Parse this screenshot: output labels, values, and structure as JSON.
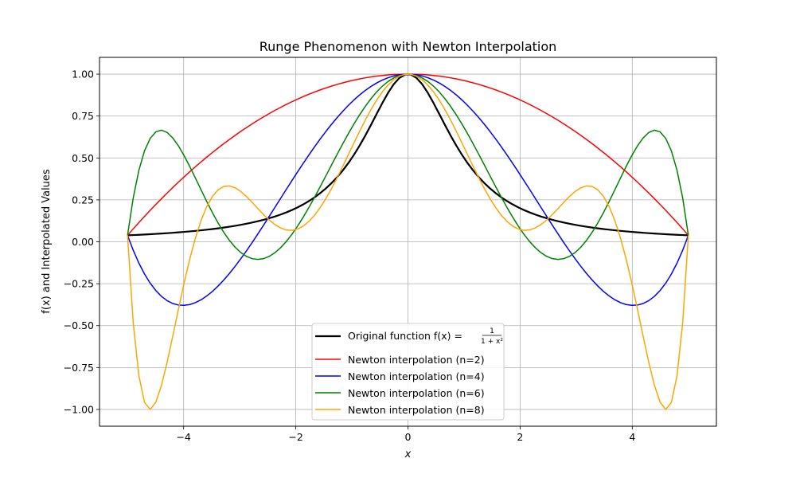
{
  "chart_data": {
    "type": "line",
    "title": "Runge Phenomenon with Newton Interpolation",
    "xlabel": "x",
    "ylabel": "f(x) and Interpolated Values",
    "xlim": [
      -5.5,
      5.5
    ],
    "ylim": [
      -1.1,
      1.1
    ],
    "xticks": [
      -4,
      -2,
      0,
      2,
      4
    ],
    "xtick_labels": [
      "−4",
      "−2",
      "0",
      "2",
      "4"
    ],
    "yticks": [
      -1.0,
      -0.75,
      -0.5,
      -0.25,
      0.0,
      0.25,
      0.5,
      0.75,
      1.0
    ],
    "ytick_labels": [
      "−1.00",
      "−0.75",
      "−0.50",
      "−0.25",
      "0.00",
      "0.25",
      "0.50",
      "0.75",
      "1.00"
    ],
    "grid": true,
    "legend_position": "lower-center",
    "x_domain": [
      -5,
      5
    ],
    "series": [
      {
        "name": "Original function f(x) = 1/(1+x²)",
        "color": "#000000",
        "linewidth": 2.2,
        "function": "1/(1+x^2)",
        "sample_points": [
          {
            "x": -5,
            "y": 0.038
          },
          {
            "x": -4,
            "y": 0.059
          },
          {
            "x": -3,
            "y": 0.1
          },
          {
            "x": -2,
            "y": 0.2
          },
          {
            "x": -1,
            "y": 0.5
          },
          {
            "x": 0,
            "y": 1.0
          },
          {
            "x": 1,
            "y": 0.5
          },
          {
            "x": 2,
            "y": 0.2
          },
          {
            "x": 3,
            "y": 0.1
          },
          {
            "x": 4,
            "y": 0.059
          },
          {
            "x": 5,
            "y": 0.038
          }
        ]
      },
      {
        "name": "Newton interpolation (n=2)",
        "color": "#ff0000",
        "linewidth": 1.5,
        "nodes": [
          -5,
          0,
          5
        ]
      },
      {
        "name": "Newton interpolation (n=4)",
        "color": "#0000ff",
        "linewidth": 1.5,
        "nodes": [
          -5,
          -2.5,
          0,
          2.5,
          5
        ]
      },
      {
        "name": "Newton interpolation (n=6)",
        "color": "#008000",
        "linewidth": 1.5,
        "nodes": [
          -5,
          -3.333,
          -1.667,
          0,
          1.667,
          3.333,
          5
        ]
      },
      {
        "name": "Newton interpolation (n=8)",
        "color": "#ffa500",
        "linewidth": 1.5,
        "nodes": [
          -5,
          -3.75,
          -2.5,
          -1.25,
          0,
          1.25,
          2.5,
          3.75,
          5
        ]
      }
    ]
  },
  "legend": {
    "original_prefix": "Original function f(x) = ",
    "frac_num": "1",
    "frac_den": "1 + x²",
    "n2": "Newton interpolation (n=2)",
    "n4": "Newton interpolation (n=4)",
    "n6": "Newton interpolation (n=6)",
    "n8": "Newton interpolation (n=8)"
  }
}
